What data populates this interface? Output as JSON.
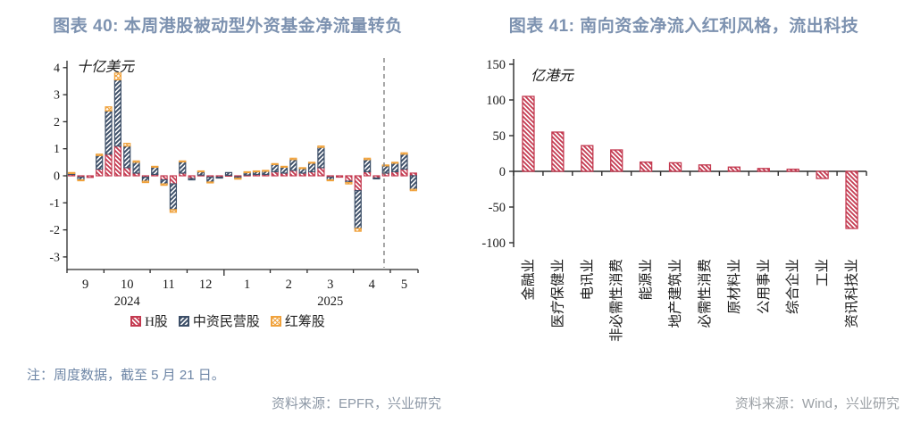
{
  "figure40": {
    "title": "图表 40: 本周港股被动型外资基金净流量转负",
    "note": "注：周度数据，截至 5 月 21 日。",
    "source": "资料来源：EPFR，兴业研究",
    "legend": [
      {
        "label": "H股",
        "color": "#C43A50",
        "hatch": "nw"
      },
      {
        "label": "中资民营股",
        "color": "#3D4F68",
        "hatch": "ne"
      },
      {
        "label": "红筹股",
        "color": "#F0A23C",
        "hatch": "cross"
      }
    ]
  },
  "figure41": {
    "title": "图表 41: 南向资金净流入红利风格，流出科技",
    "source": "资料来源：Wind，兴业研究"
  },
  "colors": {
    "h_share": "#C43A50",
    "private": "#3D4F68",
    "red_chip": "#F0A23C",
    "axis": "#2B2B2B",
    "dashed_line": "#808080",
    "title": "#7D92B0"
  },
  "chart_data": [
    {
      "type": "bar",
      "subtype": "stacked-weekly",
      "title": "本周港股被动型外资基金净流量转负",
      "ylabel": "十亿美元",
      "ylim": [
        -3,
        4
      ],
      "yticks": [
        -3,
        -2,
        -1,
        0,
        1,
        2,
        3,
        4
      ],
      "months": [
        {
          "label": "9",
          "weeks": 4
        },
        {
          "label": "10",
          "weeks": 5
        },
        {
          "label": "11",
          "weeks": 4
        },
        {
          "label": "12",
          "weeks": 4
        },
        {
          "label": "1",
          "weeks": 5
        },
        {
          "label": "2",
          "weeks": 4
        },
        {
          "label": "3",
          "weeks": 5
        },
        {
          "label": "4",
          "weeks": 4
        },
        {
          "label": "5",
          "weeks": 3
        }
      ],
      "year_labels": [
        {
          "text": "2024",
          "month_index": 1
        },
        {
          "text": "2025",
          "month_index": 6
        }
      ],
      "year_tick_after_month_index": 3,
      "dashed_line_after_bar": 35,
      "series": [
        {
          "name": "H股",
          "values": [
            0.05,
            -0.05,
            -0.06,
            0.25,
            0.8,
            1.1,
            0.3,
            0.1,
            -0.05,
            0.05,
            -0.15,
            -0.3,
            0.1,
            -0.1,
            0.03,
            -0.05,
            -0.05,
            0.02,
            -0.04,
            0.03,
            0.05,
            0.05,
            0.15,
            0.1,
            0.2,
            0.1,
            0.15,
            0.3,
            -0.05,
            -0.05,
            -0.2,
            -0.55,
            0.15,
            -0.08,
            0.1,
            0.15,
            0.25,
            0.1
          ]
        },
        {
          "name": "中资民营股",
          "values": [
            0.05,
            -0.1,
            0.0,
            0.5,
            1.6,
            2.45,
            0.8,
            0.4,
            -0.15,
            0.28,
            -0.15,
            -0.95,
            0.42,
            -0.05,
            0.13,
            -0.18,
            -0.03,
            0.1,
            -0.05,
            0.1,
            0.12,
            0.13,
            0.27,
            0.22,
            0.4,
            0.18,
            0.32,
            0.75,
            -0.1,
            0.0,
            -0.05,
            -1.4,
            0.45,
            -0.02,
            0.28,
            0.32,
            0.55,
            -0.5
          ]
        },
        {
          "name": "红筹股",
          "values": [
            0.02,
            -0.03,
            0.0,
            0.05,
            0.15,
            0.25,
            0.1,
            0.05,
            -0.05,
            0.02,
            -0.05,
            -0.1,
            0.03,
            0.0,
            0.02,
            -0.02,
            0.0,
            0.0,
            -0.01,
            0.02,
            0.01,
            0.02,
            0.03,
            0.03,
            0.05,
            0.02,
            0.03,
            0.05,
            -0.03,
            0.0,
            -0.05,
            -0.1,
            0.05,
            0.0,
            0.02,
            0.03,
            0.05,
            -0.05
          ]
        }
      ]
    },
    {
      "type": "bar",
      "title": "南向资金净流入红利风格，流出科技",
      "ylabel": "亿港元",
      "ylim": [
        -100,
        150
      ],
      "yticks": [
        -100,
        -50,
        0,
        50,
        100,
        150
      ],
      "categories": [
        "金融业",
        "医疗保健业",
        "电讯业",
        "非必需性消费",
        "能源业",
        "地产建筑业",
        "必需性消费",
        "原材料业",
        "公用事业",
        "综合企业",
        "工业",
        "资讯科技业"
      ],
      "values": [
        105,
        55,
        36,
        30,
        13,
        12,
        9,
        6,
        4,
        3,
        -10,
        -80
      ]
    }
  ]
}
